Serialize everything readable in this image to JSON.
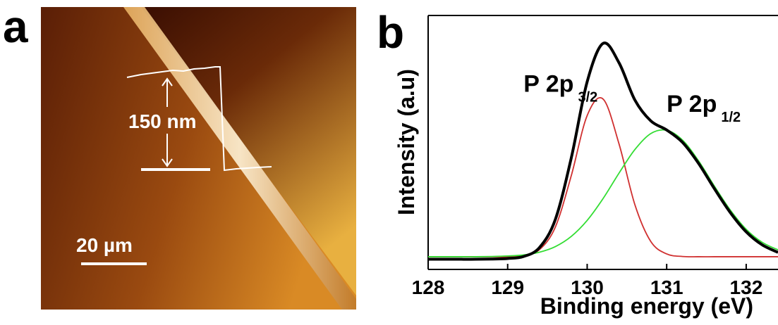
{
  "panel_a": {
    "label": "a",
    "height_label": "150 nm",
    "scale_label": "20 µm"
  },
  "chart_data": {
    "type": "line",
    "panel_label": "b",
    "x_label": "Binding energy (eV)",
    "y_label": "Intensity (a.u)",
    "x": [
      128.0,
      128.2,
      128.4,
      128.6,
      128.8,
      129.0,
      129.2,
      129.4,
      129.6,
      129.8,
      130.0,
      130.2,
      130.4,
      130.6,
      130.8,
      131.0,
      131.2,
      131.4,
      131.6,
      131.8,
      132.0,
      132.2,
      132.4
    ],
    "series": [
      {
        "color": "#000000",
        "values": [
          4,
          4,
          4,
          4,
          4.1,
          4.3,
          5.1,
          8.6,
          19.7,
          43.9,
          73.9,
          89,
          81.4,
          66.7,
          58.5,
          54.9,
          50,
          41.8,
          31.8,
          22.4,
          14.8,
          9.7,
          6.7
        ]
      },
      {
        "color": "#d03030",
        "values": [
          5,
          5,
          5,
          5,
          5,
          5,
          5.4,
          7.8,
          16.7,
          36.9,
          60.6,
          67.1,
          49.5,
          25.5,
          11,
          6.1,
          5.1,
          5,
          5,
          5,
          5,
          5,
          5
        ]
      },
      {
        "color": "#33dd33",
        "values": [
          5,
          5,
          5,
          5,
          5.1,
          5.3,
          5.7,
          6.8,
          9,
          13,
          19.3,
          27.9,
          37.9,
          47.2,
          53.5,
          54.8,
          50.9,
          42.8,
          32.8,
          23.4,
          15.8,
          10.7,
          7.7
        ]
      }
    ],
    "annotations": [
      {
        "text": "P 2p",
        "sub": "3/2",
        "x": 129.2,
        "y": 70
      },
      {
        "text": "P 2p",
        "sub": "1/2",
        "x": 131.0,
        "y": 62
      }
    ],
    "xlim": [
      128,
      132.4
    ],
    "ylim": [
      0,
      100
    ],
    "xticks": [
      128,
      129,
      130,
      131,
      132
    ]
  }
}
